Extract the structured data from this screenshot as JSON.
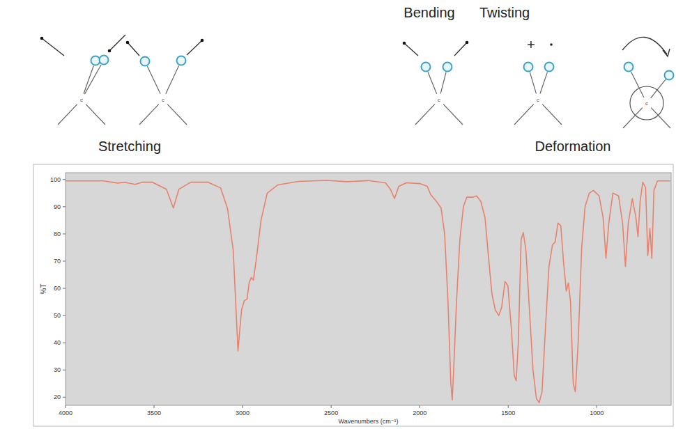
{
  "chart_data": {
    "type": "line",
    "x_label": "Wavenumbers (cm⁻¹)",
    "y_label": "%T",
    "color": "#e8826c",
    "x": [
      4000,
      3785,
      3705,
      3666,
      3607,
      3568,
      3509,
      3430,
      3391,
      3360,
      3293,
      3195,
      3124,
      3085,
      3053,
      3026,
      3006,
      2990,
      2975,
      2963,
      2951,
      2939,
      2920,
      2896,
      2861,
      2802,
      2684,
      2527,
      2409,
      2291,
      2193,
      2166,
      2142,
      2118,
      2075,
      1997,
      1957,
      1938,
      1906,
      1879,
      1859,
      1840,
      1824,
      1816,
      1808,
      1792,
      1773,
      1753,
      1734,
      1702,
      1679,
      1655,
      1631,
      1612,
      1592,
      1573,
      1553,
      1537,
      1518,
      1502,
      1482,
      1466,
      1455,
      1443,
      1427,
      1415,
      1400,
      1380,
      1360,
      1341,
      1325,
      1309,
      1290,
      1270,
      1250,
      1235,
      1219,
      1203,
      1188,
      1172,
      1160,
      1148,
      1133,
      1121,
      1105,
      1085,
      1066,
      1042,
      1019,
      987,
      964,
      948,
      932,
      909,
      877,
      854,
      838,
      822,
      799,
      779,
      767,
      755,
      740,
      724,
      712,
      700,
      689,
      677,
      657,
      622,
      585
    ],
    "values": [
      99.5,
      99.5,
      98.7,
      99,
      98.2,
      99,
      99,
      96.4,
      89.5,
      96.4,
      99,
      99,
      96.9,
      89.3,
      74,
      37,
      52,
      55.5,
      56,
      62,
      64,
      63,
      72,
      85,
      95,
      98,
      99.3,
      99.7,
      99.2,
      99.6,
      98.8,
      96.5,
      93,
      97.5,
      98.8,
      98.5,
      97.5,
      94.5,
      92,
      89.5,
      80,
      55,
      25,
      19,
      30,
      55,
      78,
      90,
      93.5,
      93.5,
      94,
      92,
      86,
      72,
      58,
      52,
      50,
      53,
      62.5,
      61,
      45,
      28,
      26,
      40,
      78,
      80.5,
      74,
      52,
      30,
      19.5,
      18,
      22,
      45,
      68,
      76,
      77,
      84,
      83,
      70,
      59,
      62,
      55,
      25,
      22,
      40,
      75,
      90,
      95,
      96,
      94,
      86,
      71,
      84,
      95,
      94,
      84,
      68,
      84,
      93,
      86,
      79,
      92,
      99,
      97,
      72,
      82,
      71,
      96,
      99.5,
      99.5,
      99.5
    ],
    "xlim": [
      4000,
      580
    ],
    "ylim": [
      17,
      102.5
    ],
    "xticks": [
      4000,
      3500,
      3000,
      2500,
      2000,
      1500,
      1000
    ],
    "yticks": [
      20,
      30,
      40,
      50,
      60,
      70,
      80,
      90,
      100
    ],
    "grid": false
  },
  "diagram": {
    "stretching": "Stretching",
    "bending": "Bending",
    "twisting": "Twisting",
    "deformation": "Deformation",
    "atom_label": "c"
  }
}
